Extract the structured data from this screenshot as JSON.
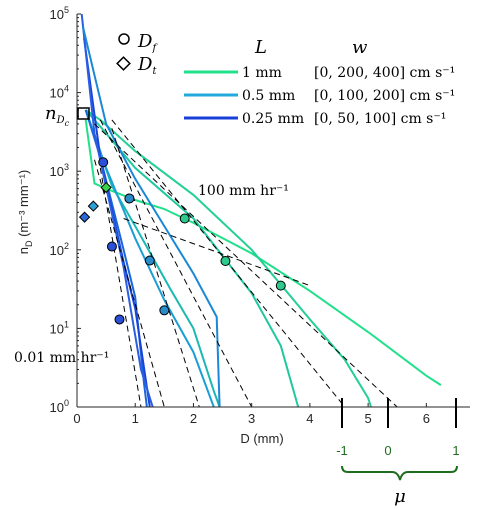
{
  "chart_data": {
    "type": "line",
    "xlabel": "D (mm)",
    "ylabel_main": "n",
    "ylabel_sub": "D",
    "ylabel_units": " (m⁻³ mm⁻¹)",
    "xlim": [
      0,
      6.75
    ],
    "ylim": [
      1,
      100000
    ],
    "y_log": true,
    "x_ticks": [
      0,
      1,
      2,
      3,
      4,
      5,
      6
    ],
    "x_tick_labels": [
      "0",
      "1",
      "2",
      "3",
      "4",
      "5",
      "6"
    ],
    "y_ticks": [
      1,
      10,
      100,
      1000,
      10000,
      100000
    ],
    "y_tick_labels": [
      [
        "10",
        "0"
      ],
      [
        "10",
        "1"
      ],
      [
        "10",
        "2"
      ],
      [
        "10",
        "3"
      ],
      [
        "10",
        "4"
      ],
      [
        "10",
        "5"
      ]
    ],
    "legend_header": {
      "L": "L",
      "w": "w"
    },
    "legend": [
      {
        "L": "1 mm",
        "w": "[0, 200, 400] cm s⁻¹",
        "color": "#20e08a"
      },
      {
        "L": "0.5 mm",
        "w": "[0, 100, 200] cm s⁻¹",
        "color": "#22aadd"
      },
      {
        "L": "0.25 mm",
        "w": "[0, 50, 100] cm s⁻¹",
        "color": "#1a3fd8"
      }
    ],
    "marker_legend": {
      "circle": "D_f",
      "diamond": "D_t"
    },
    "annotations": {
      "rain_high": "100 mm hr⁻¹",
      "rain_low": "0.01 mm hr⁻¹",
      "n_dc": "n_Dc",
      "n_dc_point": {
        "x": 0.12,
        "y": 6000
      }
    },
    "mu_axis": {
      "label": "μ",
      "ticks": [
        {
          "value": -1,
          "label": "-1"
        },
        {
          "value": 0,
          "label": "0"
        },
        {
          "value": 1,
          "label": "1"
        }
      ],
      "color": "#1f6e1f"
    },
    "series": [
      {
        "color": "#20e08a",
        "points": [
          [
            0.15,
            4500
          ],
          [
            0.3,
            700
          ],
          [
            0.5,
            600
          ],
          [
            1.0,
            430
          ],
          [
            1.5,
            330
          ],
          [
            2.0,
            220
          ],
          [
            3.0,
            90
          ],
          [
            4.0,
            30
          ],
          [
            5.0,
            9
          ],
          [
            6.0,
            2.5
          ],
          [
            6.25,
            1.9
          ]
        ]
      },
      {
        "color": "#22cf95",
        "points": [
          [
            0.15,
            6000
          ],
          [
            0.4,
            4500
          ],
          [
            1.0,
            1800
          ],
          [
            2.0,
            500
          ],
          [
            3.0,
            100
          ],
          [
            4.0,
            13
          ],
          [
            4.6,
            4
          ],
          [
            5.0,
            1.3
          ],
          [
            5.05,
            1
          ]
        ]
      },
      {
        "color": "#20c8a0",
        "points": [
          [
            0.15,
            6000
          ],
          [
            0.4,
            3700
          ],
          [
            1.0,
            1100
          ],
          [
            2.0,
            250
          ],
          [
            3.0,
            28
          ],
          [
            3.5,
            6
          ],
          [
            3.8,
            1
          ]
        ]
      },
      {
        "color": "#1cb8b2",
        "points": [
          [
            0.15,
            6000
          ],
          [
            0.6,
            650
          ],
          [
            1.0,
            200
          ],
          [
            1.6,
            32
          ],
          [
            2.0,
            10
          ],
          [
            2.35,
            1.6
          ],
          [
            2.45,
            1
          ]
        ]
      },
      {
        "color": "#1a9ed6",
        "points": [
          [
            0.15,
            6000
          ],
          [
            0.5,
            1100
          ],
          [
            1.0,
            140
          ],
          [
            1.5,
            23
          ],
          [
            2.0,
            5
          ],
          [
            2.35,
            1
          ]
        ]
      },
      {
        "color": "#1a66dc",
        "points": [
          [
            0.15,
            6000
          ],
          [
            0.4,
            1500
          ],
          [
            0.8,
            100
          ],
          [
            1.0,
            25
          ],
          [
            1.15,
            2
          ],
          [
            1.2,
            1
          ]
        ]
      },
      {
        "color": "#1a44d8",
        "points": [
          [
            0.12,
            50000
          ],
          [
            0.4,
            1500
          ],
          [
            0.8,
            70
          ],
          [
            1.0,
            18
          ],
          [
            1.25,
            1
          ]
        ]
      },
      {
        "color": "#2a5ee0",
        "points": [
          [
            0.08,
            100000
          ],
          [
            0.3,
            3000
          ],
          [
            0.8,
            60
          ],
          [
            1.1,
            3
          ],
          [
            1.3,
            1
          ]
        ]
      },
      {
        "color": "#1a88d6",
        "points": [
          [
            0.1,
            70000
          ],
          [
            0.5,
            4000
          ],
          [
            1.0,
            800
          ],
          [
            1.5,
            200
          ],
          [
            2.0,
            50
          ],
          [
            2.4,
            14
          ],
          [
            2.45,
            1
          ]
        ]
      }
    ],
    "reference_lines": [
      {
        "points": [
          [
            0.3,
            4000
          ],
          [
            5.5,
            1
          ]
        ]
      },
      {
        "points": [
          [
            0.6,
            4500
          ],
          [
            4.6,
            1
          ]
        ]
      },
      {
        "points": [
          [
            0.4,
            4500
          ],
          [
            3.0,
            1
          ]
        ]
      },
      {
        "points": [
          [
            0.6,
            3500
          ],
          [
            2.1,
            1
          ]
        ]
      },
      {
        "points": [
          [
            0.4,
            1100
          ],
          [
            1.1,
            1
          ]
        ]
      },
      {
        "points": [
          [
            0.8,
            250
          ],
          [
            4.0,
            35
          ]
        ]
      },
      {
        "points": [
          [
            0.3,
            1400
          ],
          [
            1.5,
            1
          ]
        ]
      }
    ],
    "circle_markers": [
      {
        "x": 1.85,
        "y": 250,
        "color": "#2ec98c"
      },
      {
        "x": 2.55,
        "y": 72,
        "color": "#2ec98c"
      },
      {
        "x": 3.5,
        "y": 35,
        "color": "#2ec98c"
      },
      {
        "x": 0.9,
        "y": 450,
        "color": "#2b8ac8"
      },
      {
        "x": 1.25,
        "y": 73,
        "color": "#2b8ac8"
      },
      {
        "x": 1.5,
        "y": 17,
        "color": "#2b8ac8"
      },
      {
        "x": 0.45,
        "y": 1300,
        "color": "#2950d6"
      },
      {
        "x": 0.6,
        "y": 110,
        "color": "#2950d6"
      },
      {
        "x": 0.73,
        "y": 13,
        "color": "#2950d6"
      }
    ],
    "diamond_markers": [
      {
        "x": 0.5,
        "y": 620,
        "color": "#3ad44a"
      },
      {
        "x": 0.28,
        "y": 360,
        "color": "#2aa0d6"
      },
      {
        "x": 0.13,
        "y": 260,
        "color": "#2a6ad8"
      }
    ]
  }
}
